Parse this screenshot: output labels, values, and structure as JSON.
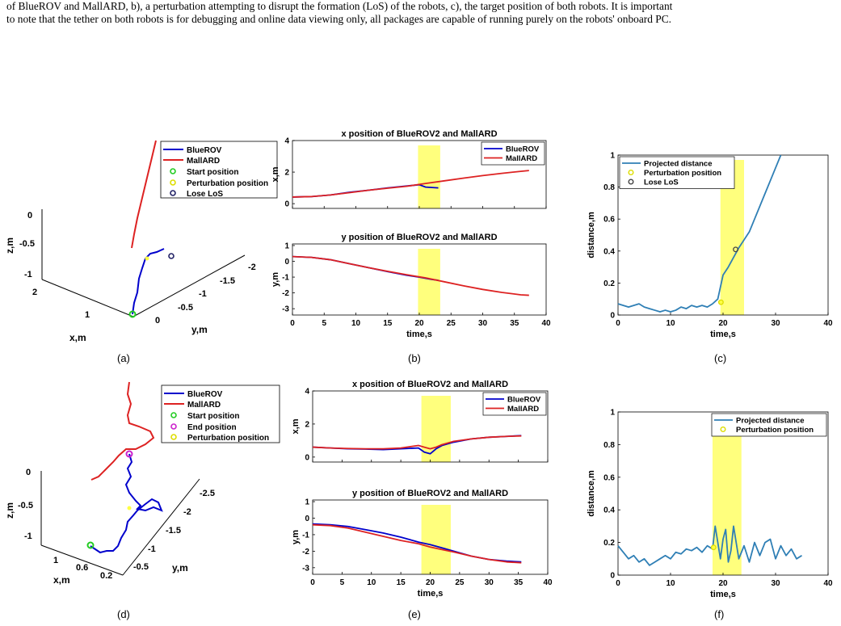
{
  "caption": {
    "line1": "of BlueROV and MallARD, b), a perturbation attempting to disrupt the formation (LoS) of the robots, c), the target position of both robots. It is important",
    "line2": "to note that the tether on both robots is for debugging and online data viewing only, all packages are capable of running purely on the robots' onboard PC."
  },
  "colors": {
    "bluerov": "#0000cc",
    "mallard": "#dd2222",
    "projected": "#2f7fb5",
    "start": "#22cc22",
    "perturbation": "#ffff44",
    "end": "#cc22cc",
    "highlight": "#ffff66"
  },
  "panels": {
    "a": {
      "label": "(a)",
      "xlabel": "x,m",
      "ylabel": "y,m",
      "zlabel": "z,m",
      "zticks": [
        "0",
        "-0.5",
        "-1"
      ],
      "xticks": [
        "2",
        "1"
      ],
      "yticks": [
        "0",
        "-0.5",
        "-1",
        "-1.5",
        "-2"
      ],
      "legend": [
        "BlueROV",
        "MallARD",
        "Start position",
        "Perturbation position",
        "Lose LoS"
      ]
    },
    "b": {
      "label": "(b)"
    },
    "c": {
      "label": "(c)"
    },
    "d": {
      "label": "(d)",
      "xlabel": "x,m",
      "ylabel": "y,m",
      "zlabel": "z,m",
      "zticks": [
        "0",
        "-0.5",
        "-1"
      ],
      "xticks": [
        "1",
        "0.6",
        "0.2"
      ],
      "yticks": [
        "-0.5",
        "-1",
        "-1.5",
        "-2",
        "-2.5"
      ],
      "legend": [
        "BlueROV",
        "MallARD",
        "Start position",
        "End position",
        "Perturbation position"
      ]
    },
    "e": {
      "label": "(e)"
    },
    "f": {
      "label": "(f)"
    }
  },
  "chart_data": [
    {
      "id": "b_top",
      "type": "line",
      "title": "x position of BlueROV2 and MallARD",
      "xlabel": "",
      "ylabel": "x,m",
      "xlim": [
        0,
        40
      ],
      "ylim": [
        -0.3,
        4
      ],
      "xticks": [
        0,
        5,
        10,
        15,
        20,
        25,
        30,
        35,
        40
      ],
      "yticks": [
        0,
        2,
        4
      ],
      "show_xticklabels": false,
      "legend": "top-right",
      "highlight": [
        19.8,
        23.3
      ],
      "series": [
        {
          "name": "BlueROV",
          "color": "bluerov",
          "x": [
            0,
            3,
            6,
            9,
            12,
            15,
            18,
            20,
            21,
            23
          ],
          "y": [
            0.42,
            0.45,
            0.55,
            0.72,
            0.85,
            1.0,
            1.12,
            1.2,
            1.05,
            1.0
          ]
        },
        {
          "name": "MallARD",
          "color": "mallard",
          "x": [
            0,
            3,
            6,
            9,
            12,
            15,
            18,
            21,
            24,
            27,
            30,
            33,
            36,
            37.3
          ],
          "y": [
            0.42,
            0.45,
            0.55,
            0.7,
            0.85,
            0.98,
            1.1,
            1.28,
            1.45,
            1.62,
            1.78,
            1.92,
            2.05,
            2.1
          ]
        }
      ]
    },
    {
      "id": "b_bottom",
      "type": "line",
      "title": "y position of BlueROV2 and MallARD",
      "xlabel": "time,s",
      "ylabel": "y,m",
      "xlim": [
        0,
        40
      ],
      "ylim": [
        -3.4,
        1.1
      ],
      "xticks": [
        0,
        5,
        10,
        15,
        20,
        25,
        30,
        35,
        40
      ],
      "yticks": [
        -3,
        -2,
        -1,
        0,
        1
      ],
      "show_xticklabels": true,
      "legend": "none",
      "highlight": [
        19.8,
        23.3
      ],
      "series": [
        {
          "name": "BlueROV",
          "color": "bluerov",
          "x": [
            0,
            3,
            6,
            9,
            12,
            15,
            18,
            20,
            22,
            23
          ],
          "y": [
            0.3,
            0.25,
            0.1,
            -0.15,
            -0.4,
            -0.65,
            -0.88,
            -1.0,
            -1.15,
            -1.2
          ]
        },
        {
          "name": "MallARD",
          "color": "mallard",
          "x": [
            0,
            3,
            6,
            9,
            12,
            15,
            18,
            21,
            24,
            27,
            30,
            33,
            36,
            37.3
          ],
          "y": [
            0.3,
            0.25,
            0.1,
            -0.15,
            -0.4,
            -0.63,
            -0.85,
            -1.05,
            -1.3,
            -1.55,
            -1.78,
            -1.97,
            -2.12,
            -2.15
          ]
        }
      ]
    },
    {
      "id": "c",
      "type": "line",
      "title": "",
      "xlabel": "time,s",
      "ylabel": "distance,m",
      "xlim": [
        0,
        40
      ],
      "ylim": [
        0,
        1
      ],
      "xticks": [
        0,
        10,
        20,
        30,
        40
      ],
      "yticks": [
        0,
        0.2,
        0.4,
        0.6,
        0.8,
        1
      ],
      "show_xticklabels": true,
      "legend": "top-left",
      "highlight": [
        19.5,
        24
      ],
      "series": [
        {
          "name": "Projected distance",
          "color": "projected",
          "x": [
            0,
            1,
            2,
            3,
            4,
            5,
            6,
            7,
            8,
            9,
            10,
            11,
            12,
            13,
            14,
            15,
            16,
            17,
            18,
            19,
            20,
            21,
            22,
            23,
            24,
            25,
            26,
            27,
            28,
            29,
            30,
            31
          ],
          "y": [
            0.07,
            0.06,
            0.05,
            0.06,
            0.07,
            0.05,
            0.04,
            0.03,
            0.02,
            0.03,
            0.02,
            0.03,
            0.05,
            0.04,
            0.06,
            0.05,
            0.06,
            0.05,
            0.07,
            0.1,
            0.25,
            0.3,
            0.36,
            0.42,
            0.47,
            0.52,
            0.6,
            0.68,
            0.76,
            0.84,
            0.92,
            1.0
          ]
        },
        {
          "name": "Perturbation position",
          "color": "perturbation",
          "marker": "circle",
          "x": [
            19.6
          ],
          "y": [
            0.08
          ]
        },
        {
          "name": "Lose LoS",
          "color": "#444444",
          "marker": "circle",
          "x": [
            22.4
          ],
          "y": [
            0.41
          ]
        }
      ]
    },
    {
      "id": "e_top",
      "type": "line",
      "title": "x position of BlueROV2 and MallARD",
      "xlabel": "",
      "ylabel": "x,m",
      "xlim": [
        0,
        40
      ],
      "ylim": [
        -0.3,
        4
      ],
      "xticks": [
        0,
        5,
        10,
        15,
        20,
        25,
        30,
        35,
        40
      ],
      "yticks": [
        0,
        2,
        4
      ],
      "show_xticklabels": false,
      "legend": "top-right",
      "highlight": [
        18.5,
        23.5
      ],
      "series": [
        {
          "name": "BlueROV",
          "color": "bluerov",
          "x": [
            0,
            3,
            6,
            9,
            12,
            15,
            18,
            19,
            20,
            21,
            22,
            24,
            27,
            30,
            33,
            35.5
          ],
          "y": [
            0.6,
            0.55,
            0.5,
            0.48,
            0.45,
            0.5,
            0.55,
            0.3,
            0.2,
            0.5,
            0.7,
            0.9,
            1.1,
            1.2,
            1.25,
            1.3
          ]
        },
        {
          "name": "MallARD",
          "color": "mallard",
          "x": [
            0,
            3,
            6,
            9,
            12,
            15,
            18,
            19,
            20,
            21,
            22,
            24,
            27,
            30,
            33,
            35.5
          ],
          "y": [
            0.6,
            0.55,
            0.52,
            0.5,
            0.5,
            0.55,
            0.7,
            0.6,
            0.5,
            0.6,
            0.75,
            0.95,
            1.1,
            1.2,
            1.25,
            1.28
          ]
        }
      ]
    },
    {
      "id": "e_bottom",
      "type": "line",
      "title": "y position of BlueROV2 and MallARD",
      "xlabel": "time,s",
      "ylabel": "y,m",
      "xlim": [
        0,
        40
      ],
      "ylim": [
        -3.4,
        1.1
      ],
      "xticks": [
        0,
        5,
        10,
        15,
        20,
        25,
        30,
        35,
        40
      ],
      "yticks": [
        -3,
        -2,
        -1,
        0,
        1
      ],
      "show_xticklabels": true,
      "legend": "none",
      "highlight": [
        18.5,
        23.5
      ],
      "series": [
        {
          "name": "BlueROV",
          "color": "bluerov",
          "x": [
            0,
            3,
            6,
            9,
            12,
            15,
            18,
            20,
            22,
            24,
            27,
            30,
            33,
            35.5
          ],
          "y": [
            -0.35,
            -0.4,
            -0.5,
            -0.7,
            -0.9,
            -1.15,
            -1.45,
            -1.6,
            -1.8,
            -2.0,
            -2.3,
            -2.5,
            -2.6,
            -2.65
          ]
        },
        {
          "name": "MallARD",
          "color": "mallard",
          "x": [
            0,
            3,
            6,
            9,
            12,
            15,
            18,
            20,
            22,
            24,
            27,
            30,
            33,
            35.5
          ],
          "y": [
            -0.4,
            -0.45,
            -0.6,
            -0.85,
            -1.1,
            -1.35,
            -1.55,
            -1.75,
            -1.9,
            -2.05,
            -2.3,
            -2.5,
            -2.65,
            -2.7
          ]
        }
      ]
    },
    {
      "id": "f",
      "type": "line",
      "title": "",
      "xlabel": "time,s",
      "ylabel": "distance,m",
      "xlim": [
        0,
        40
      ],
      "ylim": [
        0,
        1
      ],
      "xticks": [
        0,
        10,
        20,
        30,
        40
      ],
      "yticks": [
        0,
        0.2,
        0.4,
        0.6,
        0.8,
        1
      ],
      "show_xticklabels": true,
      "legend": "top-right",
      "highlight": [
        18,
        23.5
      ],
      "series": [
        {
          "name": "Projected distance",
          "color": "projected",
          "x": [
            0,
            1,
            2,
            3,
            4,
            5,
            6,
            7,
            8,
            9,
            10,
            11,
            12,
            13,
            14,
            15,
            16,
            17,
            18,
            18.5,
            19,
            19.5,
            20,
            20.5,
            21,
            21.5,
            22,
            22.5,
            23,
            24,
            25,
            26,
            27,
            28,
            29,
            30,
            31,
            32,
            33,
            34,
            35
          ],
          "y": [
            0.18,
            0.14,
            0.1,
            0.12,
            0.08,
            0.1,
            0.06,
            0.08,
            0.1,
            0.12,
            0.1,
            0.14,
            0.13,
            0.16,
            0.15,
            0.17,
            0.14,
            0.18,
            0.16,
            0.3,
            0.2,
            0.1,
            0.22,
            0.28,
            0.08,
            0.15,
            0.3,
            0.2,
            0.1,
            0.18,
            0.08,
            0.2,
            0.12,
            0.2,
            0.22,
            0.1,
            0.18,
            0.12,
            0.16,
            0.1,
            0.12
          ]
        },
        {
          "name": "Perturbation position",
          "color": "perturbation",
          "marker": "circle",
          "x": [
            18.2
          ],
          "y": [
            0.17
          ]
        }
      ]
    }
  ]
}
